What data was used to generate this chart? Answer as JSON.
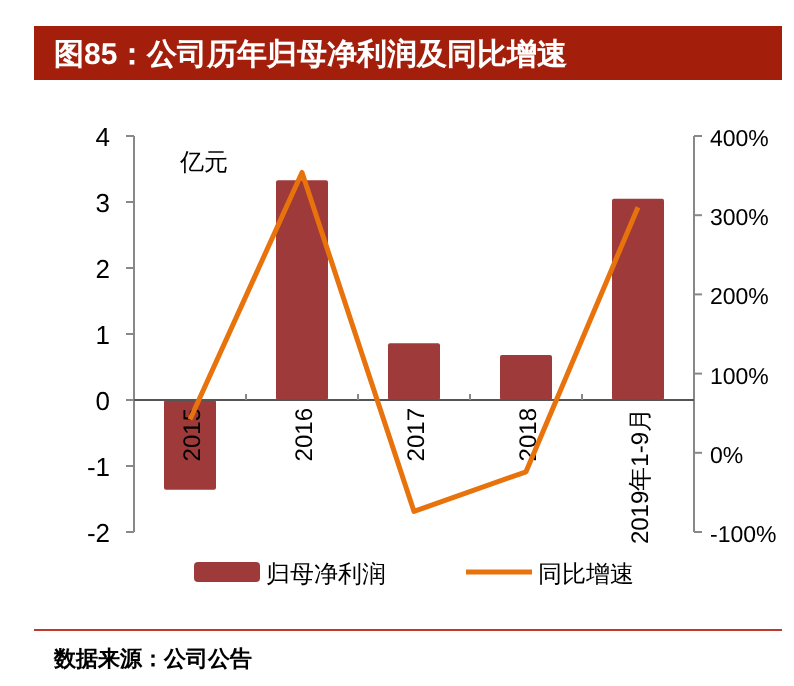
{
  "chart_data": {
    "type": "bar",
    "title": "图85：公司历年归母净利润及同比增速",
    "ylabel": "亿元",
    "annotations": [
      "数据来源：公司公告"
    ],
    "categories": [
      "2015",
      "2016",
      "2017",
      "2018",
      "2019年1-9月"
    ],
    "series": [
      {
        "name": "归母净利润",
        "color": "#9e3a3a",
        "values": [
          -1.36,
          3.33,
          0.86,
          0.68,
          3.05
        ]
      },
      {
        "name": "同比增速",
        "type": "line",
        "axis": "y2",
        "color": "#e8720c",
        "values": [
          42,
          354,
          -74,
          -24,
          310
        ]
      }
    ],
    "ylim": [
      -2,
      4
    ],
    "yticks": [
      -2,
      -1,
      0,
      1,
      2,
      3,
      4
    ],
    "y2lim": [
      -100,
      400
    ],
    "y2ticks": [
      {
        "value": -100,
        "label": "-100%"
      },
      {
        "value": 0,
        "label": "0%"
      },
      {
        "value": 100,
        "label": "100%"
      },
      {
        "value": 200,
        "label": "200%"
      },
      {
        "value": 300,
        "label": "300%"
      },
      {
        "value": 400,
        "label": "400%"
      }
    ],
    "legend": "bottom",
    "grid": false
  }
}
